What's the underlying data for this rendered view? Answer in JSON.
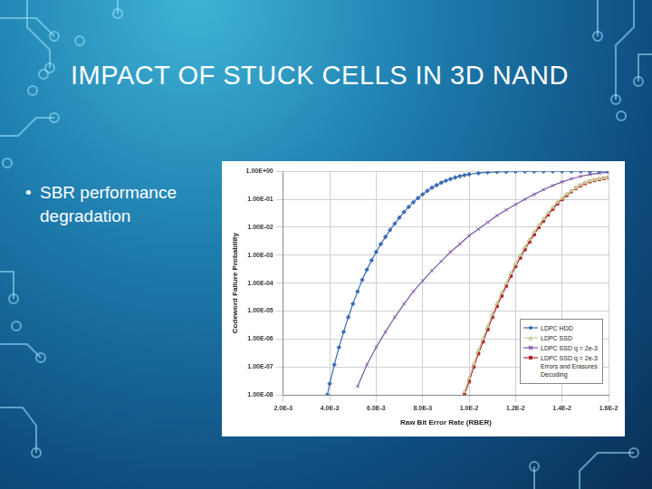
{
  "title": "IMPACT OF STUCK CELLS IN 3D NAND",
  "bullets": [
    "SBR performance degradation"
  ],
  "chart_data": {
    "type": "line",
    "x_label": "Raw Bit Error Rate (RBER)",
    "y_label": "Codeword Failure Probability",
    "log": "y",
    "grid": true,
    "legend": "lower right",
    "xlim": [
      0.002,
      0.016
    ],
    "xticks": [
      {
        "value": 0.002,
        "label": "2.0E-3"
      },
      {
        "value": 0.004,
        "label": "4.0E-3"
      },
      {
        "value": 0.006,
        "label": "6.0E-3"
      },
      {
        "value": 0.008,
        "label": "8.0E-3"
      },
      {
        "value": 0.01,
        "label": "1.0E-2"
      },
      {
        "value": 0.012,
        "label": "1.2E-2"
      },
      {
        "value": 0.014,
        "label": "1.4E-2"
      },
      {
        "value": 0.016,
        "label": "1.6E-2"
      }
    ],
    "ylim": [
      1e-08,
      1
    ],
    "yticks": [
      {
        "value": 1e-08,
        "label": "1.00E-08"
      },
      {
        "value": 1e-07,
        "label": "1.00E-07"
      },
      {
        "value": 1e-06,
        "label": "1.00E-06"
      },
      {
        "value": 1e-05,
        "label": "1.00E-05"
      },
      {
        "value": 0.0001,
        "label": "1.00E-04"
      },
      {
        "value": 0.001,
        "label": "1.00E-03"
      },
      {
        "value": 0.01,
        "label": "1.00E-02"
      },
      {
        "value": 0.1,
        "label": "1.00E-01"
      },
      {
        "value": 1,
        "label": "1.00E+00"
      }
    ],
    "series": [
      {
        "name": "LDPC HDD",
        "color": "#3b6cb4",
        "marker": "diamond",
        "x": [
          0.0039,
          0.004,
          0.0042,
          0.0044,
          0.0046,
          0.0048,
          0.005,
          0.0052,
          0.0054,
          0.0056,
          0.0058,
          0.006,
          0.0062,
          0.0064,
          0.0066,
          0.0068,
          0.007,
          0.0072,
          0.0074,
          0.0076,
          0.0078,
          0.008,
          0.0082,
          0.0084,
          0.0086,
          0.0088,
          0.009,
          0.0092,
          0.0094,
          0.0096,
          0.0098,
          0.01,
          0.0104,
          0.0108,
          0.0112,
          0.0116,
          0.012,
          0.0124,
          0.0128,
          0.0132,
          0.0136,
          0.014,
          0.0144,
          0.0148,
          0.0152,
          0.0156,
          0.016
        ],
        "values": [
          1e-08,
          2.5e-08,
          1.2e-07,
          5e-07,
          1.8e-06,
          6e-06,
          1.8e-05,
          5e-05,
          0.00013,
          0.0003,
          0.00065,
          0.0013,
          0.0025,
          0.0045,
          0.008,
          0.0135,
          0.022,
          0.035,
          0.053,
          0.078,
          0.11,
          0.15,
          0.2,
          0.26,
          0.32,
          0.39,
          0.46,
          0.53,
          0.6,
          0.67,
          0.73,
          0.78,
          0.86,
          0.92,
          0.95,
          0.97,
          0.98,
          0.99,
          0.99,
          0.995,
          0.997,
          0.998,
          0.999,
          0.999,
          1,
          1,
          1
        ]
      },
      {
        "name": "LDPC SSD",
        "color": "#c9cf9a",
        "marker": "triangle",
        "x": [
          0.0098,
          0.01,
          0.0102,
          0.0104,
          0.0106,
          0.0108,
          0.011,
          0.0112,
          0.0114,
          0.0116,
          0.0118,
          0.012,
          0.0122,
          0.0124,
          0.0126,
          0.0128,
          0.013,
          0.0132,
          0.0134,
          0.0136,
          0.0138,
          0.014,
          0.0142,
          0.0144,
          0.0146,
          0.0148,
          0.015,
          0.0152,
          0.0154,
          0.0156,
          0.0158,
          0.016
        ],
        "values": [
          1.3e-08,
          4e-08,
          1.3e-07,
          4e-07,
          1.05e-06,
          2.9e-06,
          7.8e-06,
          1.9e-05,
          4.5e-05,
          0.0001,
          0.00023,
          0.0005,
          0.001,
          0.002,
          0.0037,
          0.0068,
          0.012,
          0.02,
          0.033,
          0.052,
          0.08,
          0.11,
          0.155,
          0.2,
          0.26,
          0.33,
          0.39,
          0.45,
          0.5,
          0.54,
          0.58,
          0.62
        ]
      },
      {
        "name": "LDPC SSD q = 2e-3",
        "color": "#7b55a6",
        "marker": "x",
        "x": [
          0.0052,
          0.0056,
          0.006,
          0.0064,
          0.0068,
          0.0072,
          0.0076,
          0.008,
          0.0084,
          0.0088,
          0.0092,
          0.0096,
          0.01,
          0.0104,
          0.0108,
          0.0112,
          0.0116,
          0.012,
          0.0124,
          0.0128,
          0.0132,
          0.0136,
          0.014,
          0.0144,
          0.0148,
          0.0152,
          0.0156,
          0.016
        ],
        "values": [
          2e-08,
          1.2e-07,
          5e-07,
          1.8e-06,
          6e-06,
          1.8e-05,
          5e-05,
          0.00012,
          0.00028,
          0.0006,
          0.0013,
          0.0025,
          0.005,
          0.0085,
          0.015,
          0.026,
          0.042,
          0.065,
          0.1,
          0.15,
          0.22,
          0.31,
          0.42,
          0.54,
          0.66,
          0.77,
          0.86,
          0.92
        ]
      },
      {
        "name": "LDPC SSD q = 2e-3 Errors and Erasures Decoding",
        "color": "#b3262b",
        "marker": "square",
        "x": [
          0.0098,
          0.01,
          0.0102,
          0.0104,
          0.0106,
          0.0108,
          0.011,
          0.0112,
          0.0114,
          0.0116,
          0.0118,
          0.012,
          0.0122,
          0.0124,
          0.0126,
          0.0128,
          0.013,
          0.0132,
          0.0134,
          0.0136,
          0.0138,
          0.014,
          0.0142,
          0.0144,
          0.0146,
          0.0148,
          0.015,
          0.0152,
          0.0154,
          0.0156,
          0.0158,
          0.016
        ],
        "values": [
          1e-08,
          3e-08,
          1e-07,
          3e-07,
          8e-07,
          2.2e-06,
          6e-06,
          1.5e-05,
          3.5e-05,
          8e-05,
          0.00018,
          0.0004,
          0.0008,
          0.0016,
          0.003,
          0.0055,
          0.01,
          0.017,
          0.028,
          0.045,
          0.07,
          0.1,
          0.14,
          0.19,
          0.25,
          0.31,
          0.37,
          0.43,
          0.48,
          0.52,
          0.56,
          0.6
        ]
      }
    ]
  }
}
